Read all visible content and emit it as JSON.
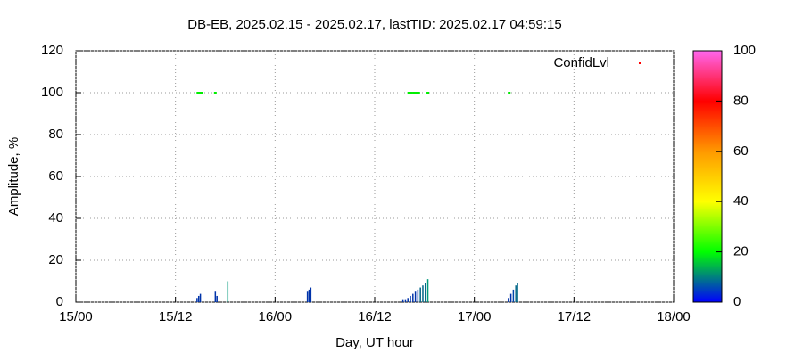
{
  "chart_data": {
    "type": "scatter",
    "title": "DB-EB, 2025.02.15 - 2025.02.17, lastTID: 2025.02.17 04:59:15",
    "xlabel": "Day, UT hour",
    "ylabel": "Amplitude, %",
    "xlim": [
      0,
      72
    ],
    "xticks": [
      {
        "value": 0,
        "label": "15/00"
      },
      {
        "value": 12,
        "label": "15/12"
      },
      {
        "value": 24,
        "label": "16/00"
      },
      {
        "value": 36,
        "label": "16/12"
      },
      {
        "value": 48,
        "label": "17/00"
      },
      {
        "value": 60,
        "label": "17/12"
      },
      {
        "value": 72,
        "label": "18/00"
      }
    ],
    "ylim": [
      0,
      120
    ],
    "yticks": [
      0,
      20,
      40,
      60,
      80,
      100,
      120
    ],
    "grid": true,
    "legend": "top-right",
    "zlim": [
      0,
      100
    ],
    "zticks": [
      0,
      20,
      40,
      60,
      80,
      100
    ],
    "series": [
      {
        "name": "ConfidLvl",
        "color": "#00ee00",
        "legend_color": "#ff0000",
        "x": [
          14.7,
          14.9,
          15.1,
          16.8,
          40.1,
          40.4,
          40.7,
          41.0,
          41.3,
          42.4,
          52.2
        ],
        "values": [
          100,
          100,
          100,
          100,
          100,
          100,
          100,
          100,
          100,
          100,
          100
        ]
      },
      {
        "style": "impulses",
        "x": [
          14.6,
          14.8,
          15.0,
          16.8,
          17.0,
          18.3,
          27.9,
          28.1,
          28.3,
          39.4,
          39.7,
          40.0,
          40.3,
          40.6,
          40.9,
          41.2,
          41.5,
          41.8,
          42.1,
          42.4,
          52.1,
          52.4,
          52.7,
          53.0,
          53.2
        ],
        "values": [
          2,
          3,
          4,
          5,
          3,
          10,
          5,
          6,
          7,
          1,
          1,
          2,
          3,
          4,
          5,
          6,
          7,
          8,
          9,
          11,
          2,
          4,
          6,
          8,
          9
        ],
        "colors": [
          "#0033aa",
          "#0033aa",
          "#0033aa",
          "#0033aa",
          "#0033aa",
          "#00997a",
          "#0033aa",
          "#0033aa",
          "#0033aa",
          "#0033aa",
          "#0033aa",
          "#0033aa",
          "#0033aa",
          "#0033aa",
          "#0033aa",
          "#0033aa",
          "#006688",
          "#006688",
          "#006688",
          "#00997a",
          "#0033aa",
          "#0033aa",
          "#0044aa",
          "#006688",
          "#006688"
        ]
      }
    ]
  }
}
